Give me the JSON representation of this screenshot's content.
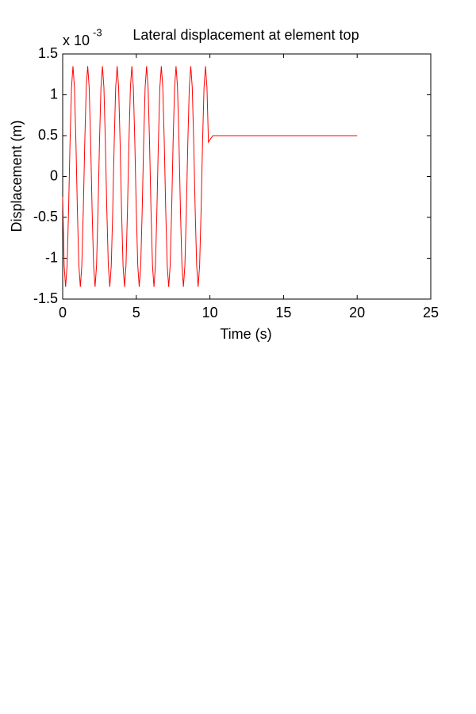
{
  "chart_data": {
    "type": "line",
    "title": "Lateral displacement at element top",
    "axis_multiplier": {
      "base": "x 10",
      "exponent": "-3"
    },
    "x_label": "Time (s)",
    "y_label": "Displacement (m)",
    "xlim": [
      0,
      25
    ],
    "xticks": [
      0,
      5,
      10,
      15,
      20,
      25
    ],
    "ylim": [
      -1.5,
      1.5
    ],
    "yticks": [
      -1.5,
      -1,
      -0.5,
      0,
      0.5,
      1,
      1.5
    ],
    "grid": false,
    "series": [
      {
        "color": "#ff0000",
        "x": [
          0,
          0.1,
          0.2,
          0.3,
          0.4,
          0.5,
          0.6,
          0.7,
          0.8,
          0.9,
          1,
          1.1,
          1.2,
          1.3,
          1.4,
          1.5,
          1.6,
          1.7,
          1.8,
          1.9,
          2,
          2.1,
          2.2,
          2.3,
          2.4,
          2.5,
          2.6,
          2.7,
          2.8,
          2.9,
          3,
          3.1,
          3.2,
          3.3,
          3.4,
          3.5,
          3.6,
          3.7,
          3.8,
          3.9,
          4,
          4.1,
          4.2,
          4.3,
          4.4,
          4.5,
          4.6,
          4.7,
          4.8,
          4.9,
          5,
          5.1,
          5.2,
          5.3,
          5.4,
          5.5,
          5.6,
          5.7,
          5.8,
          5.9,
          6,
          6.1,
          6.2,
          6.3,
          6.4,
          6.5,
          6.6,
          6.7,
          6.8,
          6.9,
          7,
          7.1,
          7.2,
          7.3,
          7.4,
          7.5,
          7.6,
          7.7,
          7.8,
          7.9,
          8,
          8.1,
          8.2,
          8.3,
          8.4,
          8.5,
          8.6,
          8.7,
          8.8,
          8.9,
          9,
          9.1,
          9.2,
          9.3,
          9.4,
          9.5,
          9.6,
          9.7,
          9.8,
          9.9,
          10,
          10.2,
          20
        ],
        "values": [
          -0.25,
          -1.09,
          -1.35,
          -1.09,
          -0.42,
          0.42,
          1.09,
          1.35,
          1.09,
          0.42,
          -0.42,
          -1.09,
          -1.35,
          -1.09,
          -0.42,
          0.42,
          1.09,
          1.35,
          1.09,
          0.42,
          -0.42,
          -1.09,
          -1.35,
          -1.09,
          -0.42,
          0.42,
          1.09,
          1.35,
          1.09,
          0.42,
          -0.42,
          -1.09,
          -1.35,
          -1.09,
          -0.42,
          0.42,
          1.09,
          1.35,
          1.09,
          0.42,
          -0.42,
          -1.09,
          -1.35,
          -1.09,
          -0.42,
          0.42,
          1.09,
          1.35,
          1.09,
          0.42,
          -0.42,
          -1.09,
          -1.35,
          -1.09,
          -0.42,
          0.42,
          1.09,
          1.35,
          1.09,
          0.42,
          -0.42,
          -1.09,
          -1.35,
          -1.09,
          -0.42,
          0.42,
          1.09,
          1.35,
          1.09,
          0.42,
          -0.42,
          -1.09,
          -1.35,
          -1.09,
          -0.42,
          0.42,
          1.09,
          1.35,
          1.09,
          0.42,
          -0.42,
          -1.09,
          -1.35,
          -1.09,
          -0.42,
          0.42,
          1.09,
          1.35,
          1.09,
          0.42,
          -0.42,
          -1.09,
          -1.35,
          -1.09,
          -0.42,
          0.42,
          1.09,
          1.35,
          1.09,
          0.42,
          0.45,
          0.5,
          0.5
        ]
      }
    ]
  }
}
